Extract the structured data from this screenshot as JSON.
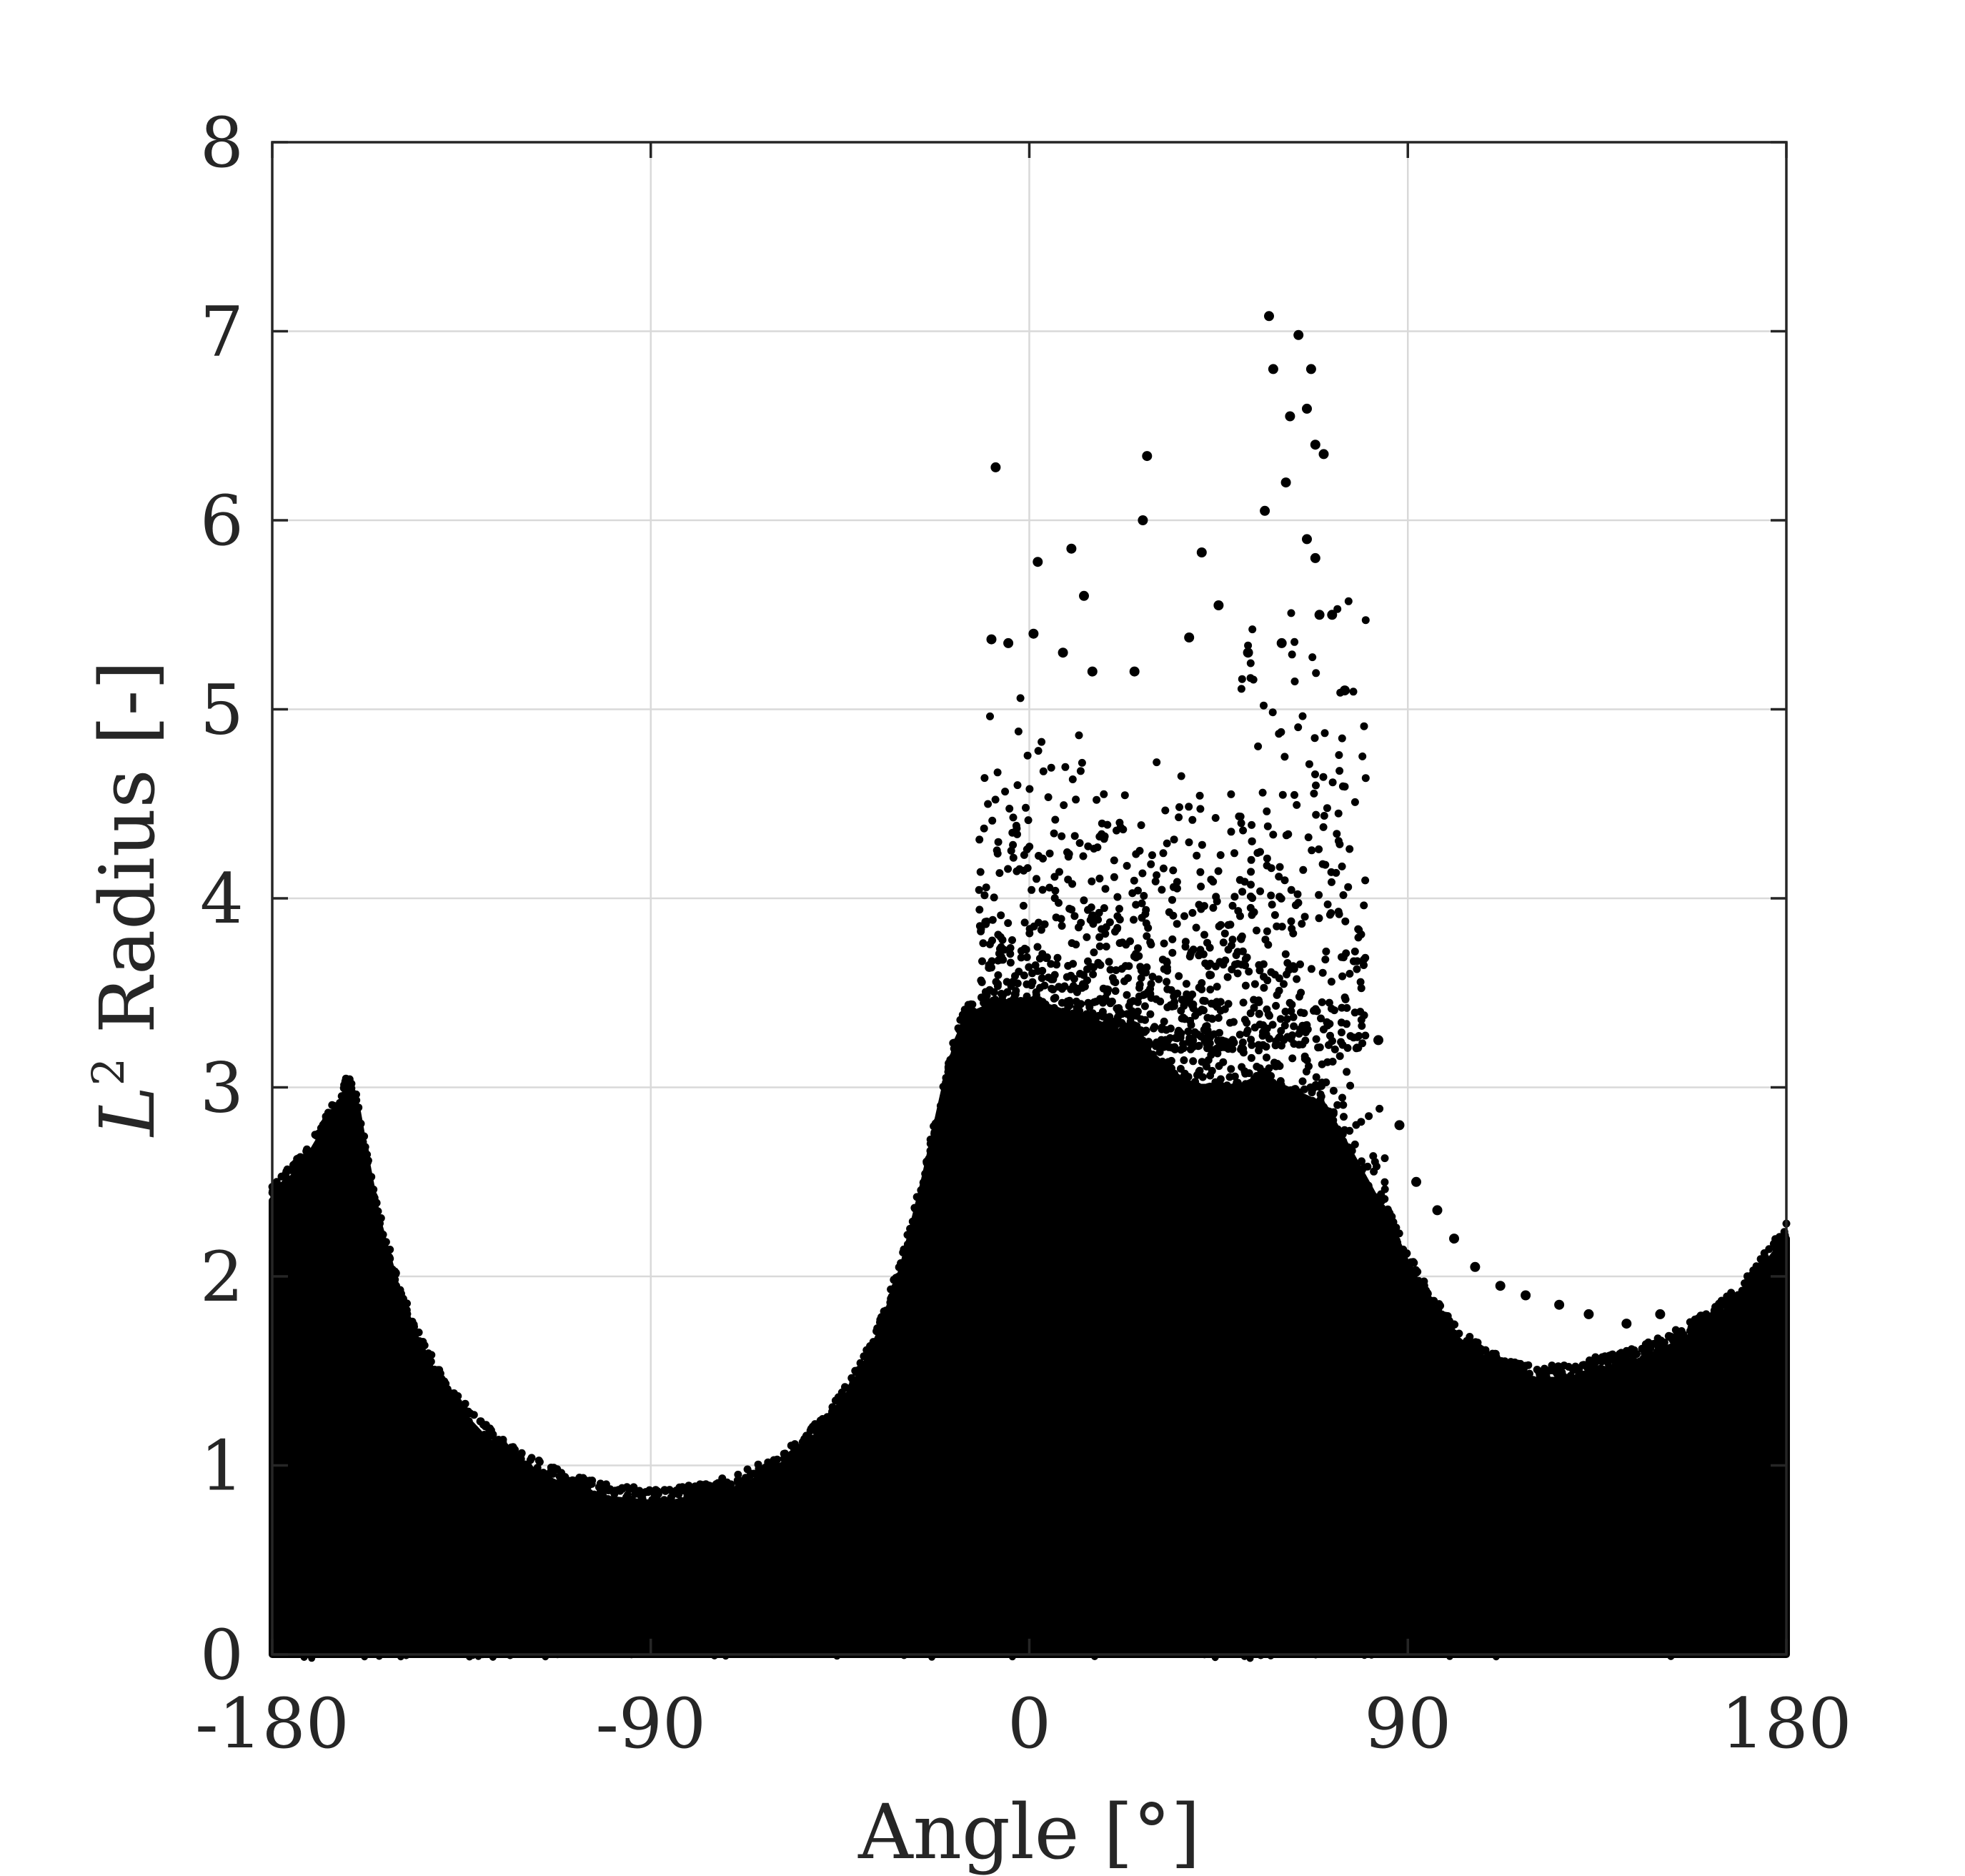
{
  "chart_data": {
    "type": "scatter",
    "title": "",
    "xlabel": "Angle [°]",
    "ylabel_italic": "L",
    "ylabel_superscript": "2",
    "ylabel_rest": " Radius [-]",
    "xlim": [
      -180,
      180
    ],
    "ylim": [
      0,
      8
    ],
    "xticks": [
      -180,
      -90,
      0,
      90,
      180
    ],
    "xtick_labels": [
      "-180",
      "-90",
      "0",
      "90",
      "180"
    ],
    "yticks": [
      0,
      1,
      2,
      3,
      4,
      5,
      6,
      7,
      8
    ],
    "ytick_labels": [
      "0",
      "1",
      "2",
      "3",
      "4",
      "5",
      "6",
      "7",
      "8"
    ],
    "grid": true,
    "marker_color": "#000000",
    "envelope": {
      "description": "approximate upper edge of the dense point cloud (x in degrees, y = radius)",
      "x": [
        -180,
        -176,
        -172,
        -168,
        -164,
        -162,
        -160,
        -158,
        -155,
        -150,
        -145,
        -140,
        -135,
        -130,
        -125,
        -120,
        -115,
        -110,
        -105,
        -100,
        -95,
        -90,
        -85,
        -80,
        -75,
        -70,
        -65,
        -60,
        -55,
        -50,
        -45,
        -40,
        -35,
        -30,
        -25,
        -20,
        -17,
        -15,
        -13,
        -12,
        -10,
        -5,
        0,
        5,
        10,
        15,
        20,
        25,
        30,
        35,
        40,
        45,
        50,
        55,
        60,
        65,
        70,
        75,
        80,
        85,
        90,
        95,
        100,
        105,
        110,
        115,
        120,
        125,
        130,
        135,
        140,
        145,
        150,
        155,
        160,
        165,
        170,
        175,
        180
      ],
      "y": [
        2.4,
        2.5,
        2.6,
        2.75,
        2.9,
        3.0,
        2.9,
        2.65,
        2.3,
        1.9,
        1.62,
        1.42,
        1.27,
        1.15,
        1.06,
        0.99,
        0.93,
        0.88,
        0.85,
        0.82,
        0.81,
        0.8,
        0.8,
        0.82,
        0.84,
        0.87,
        0.92,
        0.98,
        1.06,
        1.16,
        1.3,
        1.48,
        1.72,
        2.05,
        2.5,
        3.0,
        3.25,
        3.35,
        3.38,
        3.4,
        3.42,
        3.45,
        3.45,
        3.42,
        3.38,
        3.35,
        3.3,
        3.25,
        3.15,
        3.05,
        3.0,
        3.0,
        3.0,
        3.05,
        3.0,
        2.95,
        2.9,
        2.7,
        2.5,
        2.3,
        2.05,
        1.85,
        1.7,
        1.6,
        1.52,
        1.47,
        1.45,
        1.45,
        1.45,
        1.5,
        1.52,
        1.55,
        1.6,
        1.65,
        1.72,
        1.8,
        1.9,
        2.05,
        2.2
      ]
    },
    "outlier_points": [
      {
        "x": -8,
        "y": 6.28
      },
      {
        "x": 2,
        "y": 5.78
      },
      {
        "x": 10,
        "y": 5.85
      },
      {
        "x": 13,
        "y": 5.6
      },
      {
        "x": 27,
        "y": 6.0
      },
      {
        "x": 28,
        "y": 6.34
      },
      {
        "x": 41,
        "y": 5.83
      },
      {
        "x": 56,
        "y": 6.05
      },
      {
        "x": 57,
        "y": 7.08
      },
      {
        "x": 58,
        "y": 6.8
      },
      {
        "x": 61,
        "y": 6.2
      },
      {
        "x": 62,
        "y": 6.55
      },
      {
        "x": 64,
        "y": 6.98
      },
      {
        "x": 67,
        "y": 6.8
      },
      {
        "x": 66,
        "y": 6.59
      },
      {
        "x": 68,
        "y": 6.4
      },
      {
        "x": 70,
        "y": 6.35
      },
      {
        "x": 66,
        "y": 5.9
      },
      {
        "x": 68,
        "y": 5.8
      },
      {
        "x": 69,
        "y": 5.5
      },
      {
        "x": -9,
        "y": 5.37
      },
      {
        "x": -5,
        "y": 5.35
      },
      {
        "x": 1,
        "y": 5.4
      },
      {
        "x": 8,
        "y": 5.3
      },
      {
        "x": 15,
        "y": 5.2
      },
      {
        "x": 25,
        "y": 5.2
      },
      {
        "x": 38,
        "y": 5.38
      },
      {
        "x": 45,
        "y": 5.55
      },
      {
        "x": 52,
        "y": 5.3
      },
      {
        "x": 60,
        "y": 5.35
      },
      {
        "x": 72,
        "y": 5.5
      },
      {
        "x": 75,
        "y": 5.1
      },
      {
        "x": 83,
        "y": 3.25
      },
      {
        "x": 88,
        "y": 2.8
      },
      {
        "x": 92,
        "y": 2.5
      },
      {
        "x": 97,
        "y": 2.35
      },
      {
        "x": 101,
        "y": 2.2
      },
      {
        "x": 106,
        "y": 2.05
      },
      {
        "x": 112,
        "y": 1.95
      },
      {
        "x": 118,
        "y": 1.9
      },
      {
        "x": 126,
        "y": 1.85
      },
      {
        "x": 133,
        "y": 1.8
      },
      {
        "x": 142,
        "y": 1.75
      },
      {
        "x": 150,
        "y": 1.8
      }
    ],
    "bottom_noise_y_range": [
      0,
      0.05
    ]
  }
}
